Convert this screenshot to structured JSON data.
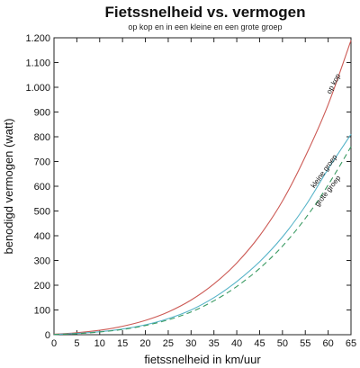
{
  "chart_data": {
    "type": "line",
    "title": "Fietssnelheid vs. vermogen",
    "subtitle": "op kop en in een kleine en een grote groep",
    "xlabel": "fietssnelheid in km/uur",
    "ylabel": "benodigd vermogen (watt)",
    "xlim": [
      0,
      65
    ],
    "ylim": [
      0,
      1200
    ],
    "xticks": [
      0,
      5,
      10,
      15,
      20,
      25,
      30,
      35,
      40,
      45,
      50,
      55,
      60,
      65
    ],
    "yticks": [
      0,
      100,
      200,
      300,
      400,
      500,
      600,
      700,
      800,
      900,
      1000,
      1100,
      1200
    ],
    "ytick_labels": [
      "0",
      "100",
      "200",
      "300",
      "400",
      "500",
      "600",
      "700",
      "800",
      "900",
      "1.000",
      "1.100",
      "1.200"
    ],
    "grid": false,
    "x": [
      0,
      5,
      10,
      15,
      20,
      25,
      30,
      35,
      40,
      45,
      50,
      55,
      60,
      65
    ],
    "series": [
      {
        "name": "op kop",
        "color": "#cc5a55",
        "dash": "solid",
        "values": [
          2,
          8,
          18,
          34,
          58,
          92,
          140,
          205,
          290,
          400,
          540,
          720,
          930,
          1190
        ]
      },
      {
        "name": "kleine groep",
        "color": "#55b3c8",
        "dash": "solid",
        "values": [
          1,
          5,
          12,
          23,
          40,
          65,
          100,
          150,
          215,
          295,
          395,
          520,
          670,
          810
        ]
      },
      {
        "name": "grote groep",
        "color": "#3a9a62",
        "dash": "dashed",
        "values": [
          1,
          4,
          11,
          21,
          37,
          60,
          92,
          137,
          195,
          268,
          358,
          470,
          605,
          760
        ]
      }
    ]
  }
}
